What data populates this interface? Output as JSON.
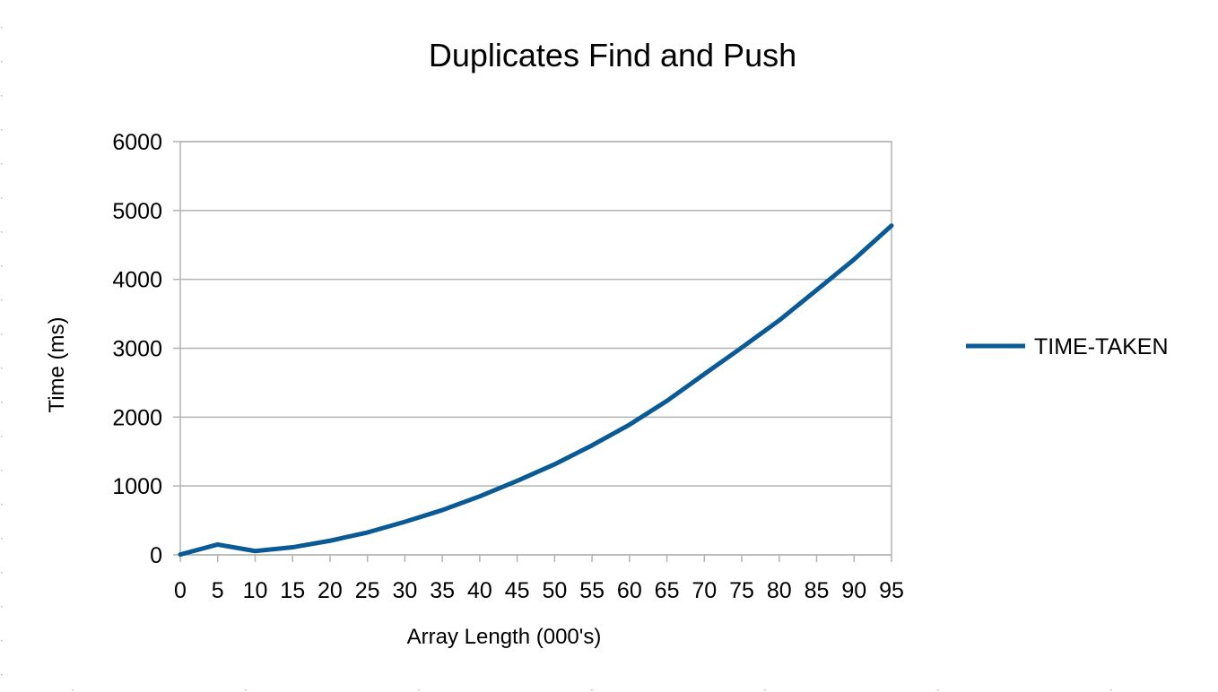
{
  "chart_data": {
    "type": "line",
    "title": "Duplicates Find and Push",
    "xlabel": "Array Length (000's)",
    "ylabel": "Time (ms)",
    "ylim": [
      0,
      6000
    ],
    "yticks": [
      0,
      1000,
      2000,
      3000,
      4000,
      5000,
      6000
    ],
    "x": [
      0,
      5,
      10,
      15,
      20,
      25,
      30,
      35,
      40,
      45,
      50,
      55,
      60,
      65,
      70,
      75,
      80,
      85,
      90,
      95
    ],
    "series": [
      {
        "name": "TIME-TAKEN",
        "color": "#0a5a95",
        "values": [
          5,
          150,
          55,
          110,
          205,
          325,
          480,
          650,
          850,
          1075,
          1315,
          1590,
          1890,
          2235,
          2625,
          3010,
          3405,
          3845,
          4290,
          4780
        ]
      }
    ],
    "grid": true,
    "legend_position": "right"
  }
}
